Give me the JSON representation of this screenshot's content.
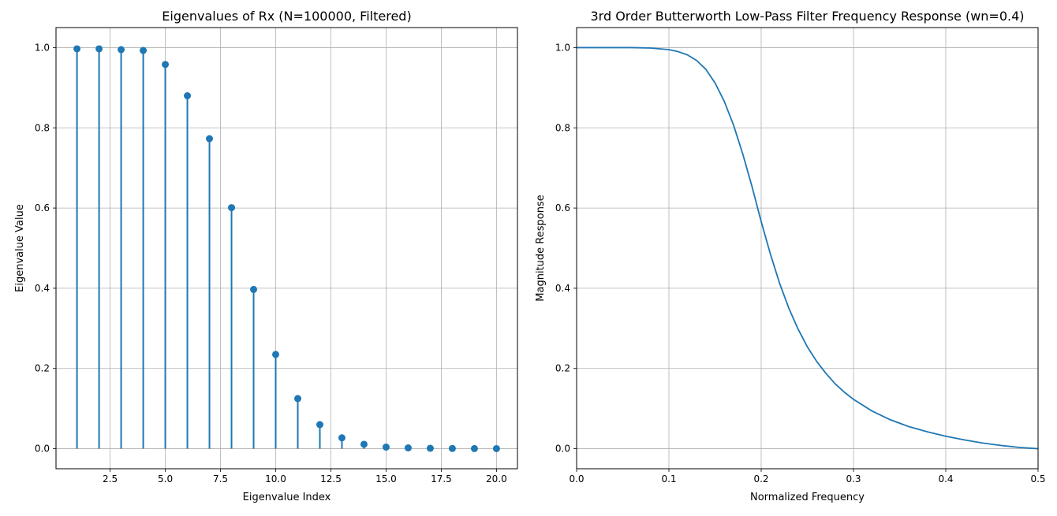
{
  "chart_data": [
    {
      "type": "stem",
      "title": "Eigenvalues of Rx (N=100000, Filtered)",
      "xlabel": "Eigenvalue Index",
      "ylabel": "Eigenvalue Value",
      "xlim": [
        0.05,
        20.95
      ],
      "ylim": [
        -0.05,
        1.05
      ],
      "xticks": [
        2.5,
        5.0,
        7.5,
        10.0,
        12.5,
        15.0,
        17.5,
        20.0
      ],
      "xticklabels": [
        "2.5",
        "5.0",
        "7.5",
        "10.0",
        "12.5",
        "15.0",
        "17.5",
        "20.0"
      ],
      "yticks": [
        0.0,
        0.2,
        0.4,
        0.6,
        0.8,
        1.0
      ],
      "yticklabels": [
        "0.0",
        "0.2",
        "0.4",
        "0.6",
        "0.8",
        "1.0"
      ],
      "grid": true,
      "color": "#1f77b4",
      "x": [
        1,
        2,
        3,
        4,
        5,
        6,
        7,
        8,
        9,
        10,
        11,
        12,
        13,
        14,
        15,
        16,
        17,
        18,
        19,
        20
      ],
      "values": [
        0.997,
        0.997,
        0.995,
        0.993,
        0.958,
        0.88,
        0.773,
        0.601,
        0.397,
        0.235,
        0.125,
        0.06,
        0.027,
        0.011,
        0.004,
        0.002,
        0.001,
        0.0005,
        0.0003,
        0.0002
      ]
    },
    {
      "type": "line",
      "title": "3rd Order Butterworth Low-Pass Filter Frequency Response (wn=0.4)",
      "xlabel": "Normalized Frequency",
      "ylabel": "Magnitude Response",
      "xlim": [
        0.0,
        0.5
      ],
      "ylim": [
        -0.05,
        1.05
      ],
      "xticks": [
        0.0,
        0.1,
        0.2,
        0.3,
        0.4,
        0.5
      ],
      "xticklabels": [
        "0.0",
        "0.1",
        "0.2",
        "0.3",
        "0.4",
        "0.5"
      ],
      "yticks": [
        0.0,
        0.2,
        0.4,
        0.6,
        0.8,
        1.0
      ],
      "yticklabels": [
        "0.0",
        "0.2",
        "0.4",
        "0.6",
        "0.8",
        "1.0"
      ],
      "grid": true,
      "color": "#1f77b4",
      "series": [
        {
          "x": [
            0.0,
            0.02,
            0.04,
            0.06,
            0.08,
            0.1,
            0.11,
            0.12,
            0.13,
            0.14,
            0.15,
            0.16,
            0.17,
            0.18,
            0.19,
            0.2,
            0.21,
            0.22,
            0.23,
            0.24,
            0.25,
            0.26,
            0.27,
            0.28,
            0.29,
            0.3,
            0.32,
            0.34,
            0.36,
            0.38,
            0.4,
            0.42,
            0.44,
            0.46,
            0.48,
            0.5
          ],
          "values": [
            1.0,
            1.0,
            1.0,
            1.0,
            0.999,
            0.995,
            0.99,
            0.982,
            0.968,
            0.946,
            0.912,
            0.866,
            0.807,
            0.735,
            0.654,
            0.566,
            0.485,
            0.412,
            0.35,
            0.298,
            0.254,
            0.218,
            0.188,
            0.162,
            0.141,
            0.123,
            0.094,
            0.072,
            0.055,
            0.042,
            0.031,
            0.022,
            0.014,
            0.008,
            0.003,
            0.0
          ]
        }
      ]
    }
  ]
}
